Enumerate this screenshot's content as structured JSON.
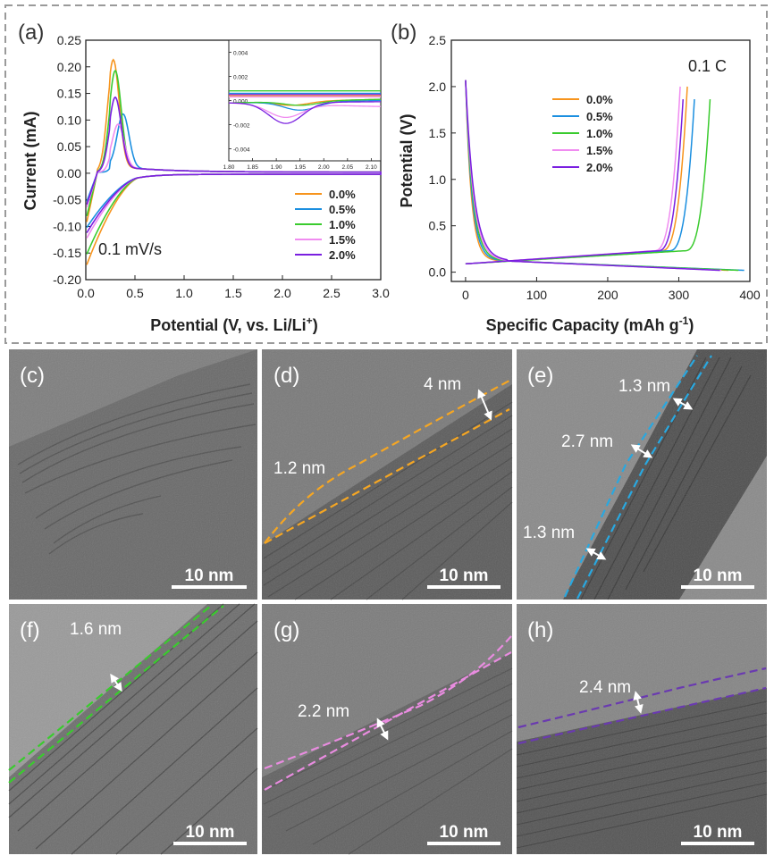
{
  "colors": {
    "s0": "#F7941D",
    "s1": "#1B8FE0",
    "s2": "#3ACB2E",
    "s3": "#F08CF0",
    "s4": "#7A1FE0",
    "frame": "#9a9a9a"
  },
  "panels": {
    "a": "(a)",
    "b": "(b)",
    "c": "(c)",
    "d": "(d)",
    "e": "(e)",
    "f": "(f)",
    "g": "(g)",
    "h": "(h)"
  },
  "chart_data": [
    {
      "panel": "(a)",
      "type": "line",
      "xlabel": "Potential (V, vs. Li/Li",
      "xlabel_sup": "+",
      "xlabel_end": ")",
      "ylabel": "Current (mA)",
      "xlim": [
        0.0,
        3.0
      ],
      "ylim": [
        -0.2,
        0.25
      ],
      "xticks": [
        "0.0",
        "0.5",
        "1.0",
        "1.5",
        "2.0",
        "2.5",
        "3.0"
      ],
      "yticks": [
        "-0.20",
        "-0.15",
        "-0.10",
        "-0.05",
        "0.00",
        "0.05",
        "0.10",
        "0.15",
        "0.20",
        "0.25"
      ],
      "annotation": "0.1 mV/s",
      "legend_position": "bottom-right",
      "series": [
        {
          "name": "0.0%",
          "color": "s0",
          "peak_x": 0.28,
          "peak_y": 0.2,
          "low_y": -0.17
        },
        {
          "name": "0.5%",
          "color": "s1",
          "peak_x": 0.38,
          "peak_y": 0.1,
          "low_y": -0.1
        },
        {
          "name": "1.0%",
          "color": "s2",
          "peak_x": 0.3,
          "peak_y": 0.18,
          "low_y": -0.15
        },
        {
          "name": "1.5%",
          "color": "s3",
          "peak_x": 0.33,
          "peak_y": 0.08,
          "low_y": -0.12
        },
        {
          "name": "2.0%",
          "color": "s4",
          "peak_x": 0.3,
          "peak_y": 0.13,
          "low_y": -0.11
        }
      ],
      "inset": {
        "xlim": [
          1.8,
          2.12
        ],
        "ylim": [
          -0.005,
          0.005
        ],
        "xticks": [
          "1.80",
          "1.85",
          "1.90",
          "1.95",
          "2.00",
          "2.05",
          "2.10"
        ],
        "yticks": [
          "-0.004",
          "-0.002",
          "0.000",
          "0.002",
          "0.004"
        ],
        "series": [
          {
            "color": "s0",
            "upper": 0.0004,
            "dip_x": 1.93,
            "dip_y": -0.0004,
            "end_y": 0.0001
          },
          {
            "color": "s1",
            "upper": 0.0006,
            "dip_x": 1.95,
            "dip_y": -0.0008,
            "end_y": 0.0
          },
          {
            "color": "s2",
            "upper": 0.0008,
            "dip_x": 1.95,
            "dip_y": -0.0004,
            "end_y": 0.0001
          },
          {
            "color": "s3",
            "upper": 0.0003,
            "dip_x": 1.92,
            "dip_y": -0.0014,
            "end_y": -0.0005
          },
          {
            "color": "s4",
            "upper": 0.0005,
            "dip_x": 1.92,
            "dip_y": -0.0019,
            "end_y": -0.0001
          }
        ]
      }
    },
    {
      "panel": "(b)",
      "type": "line",
      "xlabel": "Specific Capacity (mAh g",
      "xlabel_sup": "-1",
      "xlabel_end": ")",
      "ylabel": "Potential (V)",
      "xlim": [
        -20,
        400
      ],
      "ylim": [
        -0.1,
        2.5
      ],
      "xticks": [
        "0",
        "100",
        "200",
        "300",
        "400"
      ],
      "yticks": [
        "0.0",
        "0.5",
        "1.0",
        "1.5",
        "2.0",
        "2.5"
      ],
      "annotation": "0.1 C",
      "legend_position": "top-center",
      "series": [
        {
          "name": "0.0%",
          "color": "s0",
          "discharge_end": 370,
          "charge_end": 312
        },
        {
          "name": "0.5%",
          "color": "s1",
          "discharge_end": 392,
          "charge_end": 323
        },
        {
          "name": "1.0%",
          "color": "s2",
          "discharge_end": 385,
          "charge_end": 345
        },
        {
          "name": "1.5%",
          "color": "s3",
          "discharge_end": 360,
          "charge_end": 302
        },
        {
          "name": "2.0%",
          "color": "s4",
          "discharge_end": 358,
          "charge_end": 307
        }
      ]
    }
  ],
  "tem": {
    "scalebar": "10 nm",
    "d": {
      "label1": "4 nm",
      "label2": "1.2 nm"
    },
    "e": {
      "label1": "1.3 nm",
      "label2": "2.7 nm",
      "label3": "1.3 nm"
    },
    "f": {
      "label1": "1.6 nm"
    },
    "g": {
      "label1": "2.2 nm"
    },
    "h": {
      "label1": "2.4 nm"
    }
  }
}
